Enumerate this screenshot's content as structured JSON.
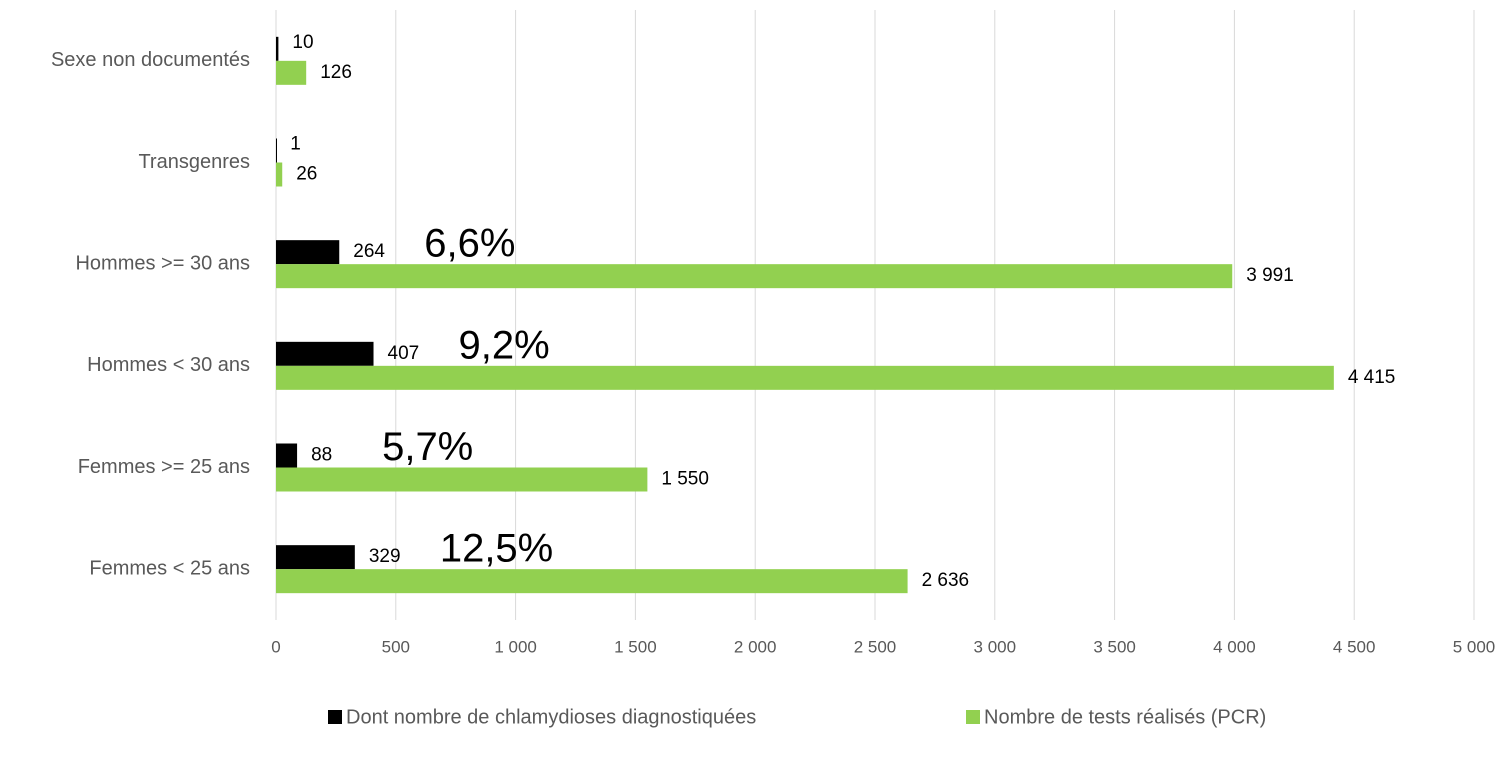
{
  "chart_data": {
    "type": "bar",
    "orientation": "horizontal",
    "categories": [
      "Sexe non documentés",
      "Transgenres",
      "Hommes >= 30 ans",
      "Hommes < 30 ans",
      "Femmes >= 25 ans",
      "Femmes < 25 ans"
    ],
    "series": [
      {
        "name": "Dont nombre de chlamydioses diagnostiquées",
        "color": "#000000",
        "values": [
          10,
          1,
          264,
          407,
          88,
          329
        ]
      },
      {
        "name": "Nombre de tests réalisés (PCR)",
        "color": "#92d050",
        "values": [
          126,
          26,
          3991,
          4415,
          1550,
          2636
        ],
        "value_labels": [
          "126",
          "26",
          "3 991",
          "4 415",
          "1 550",
          "2 636"
        ]
      }
    ],
    "annotations": [
      null,
      null,
      "6,6%",
      "9,2%",
      "5,7%",
      "12,5%"
    ],
    "xlim": [
      0,
      5000
    ],
    "xticks": [
      0,
      500,
      {
        "value": 1000,
        "label": "1 000"
      },
      {
        "value": 1500,
        "label": "1 500"
      },
      {
        "value": 2000,
        "label": "2 000"
      },
      {
        "value": 2500,
        "label": "2 500"
      },
      {
        "value": 3000,
        "label": "3 000"
      },
      {
        "value": 3500,
        "label": "3 500"
      },
      {
        "value": 4000,
        "label": "4 000"
      },
      {
        "value": 4500,
        "label": "4 500"
      },
      {
        "value": 5000,
        "label": "5 000"
      }
    ],
    "grid": true,
    "legend": "bottom"
  }
}
